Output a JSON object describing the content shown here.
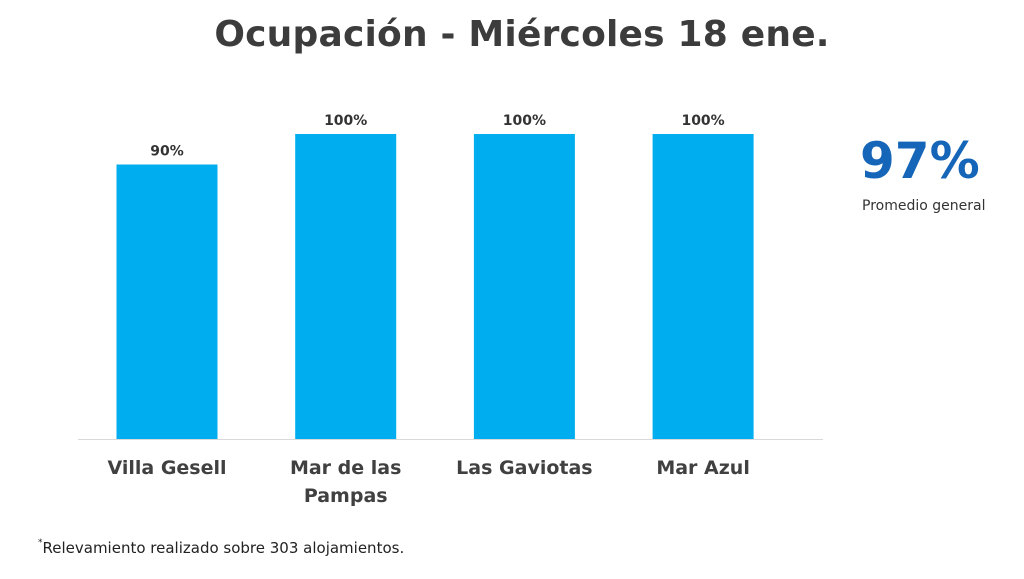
{
  "title": "Ocupación - Miércoles 18 ene.",
  "summary": {
    "value": "97%",
    "label": "Promedio general"
  },
  "footnote": {
    "marker": "*",
    "text": "Relevamiento realizado sobre 303 alojamientos."
  },
  "colors": {
    "bar": "#00aeef",
    "kpi": "#1565b8",
    "title": "#3c3c3c"
  },
  "chart_data": {
    "type": "bar",
    "title": "Ocupación - Miércoles 18 ene.",
    "categories": [
      [
        "Villa Gesell"
      ],
      [
        "Mar de las",
        "Pampas"
      ],
      [
        "Las Gaviotas"
      ],
      [
        "Mar Azul"
      ]
    ],
    "values": [
      90,
      100,
      100,
      100
    ],
    "value_labels": [
      "90%",
      "100%",
      "100%",
      "100%"
    ],
    "xlabel": "",
    "ylabel": "",
    "ylim": [
      0,
      100
    ],
    "grid": false,
    "legend": "none"
  }
}
